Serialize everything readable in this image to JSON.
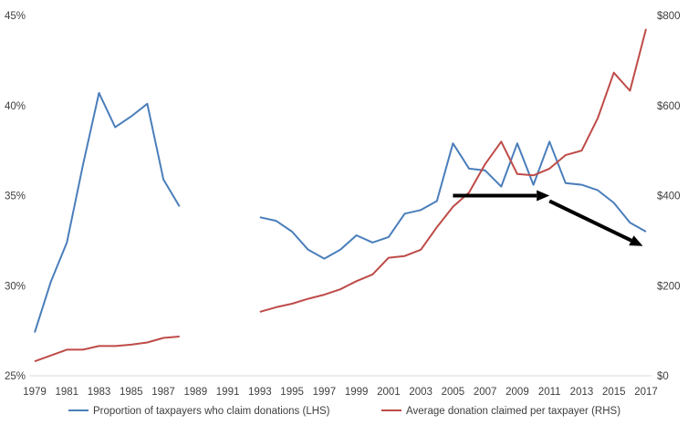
{
  "chart_data": {
    "type": "line",
    "title": "",
    "xlabel": "",
    "ylabel_left": "",
    "ylabel_right": "",
    "x": [
      1979,
      1980,
      1981,
      1982,
      1983,
      1984,
      1985,
      1986,
      1987,
      1988,
      1989,
      1990,
      1991,
      1992,
      1993,
      1994,
      1995,
      1996,
      1997,
      1998,
      1999,
      2000,
      2001,
      2002,
      2003,
      2004,
      2005,
      2006,
      2007,
      2008,
      2009,
      2010,
      2011,
      2012,
      2013,
      2014,
      2015,
      2016,
      2017
    ],
    "x_ticks": [
      "1979",
      "1981",
      "1983",
      "1985",
      "1987",
      "1989",
      "1991",
      "1993",
      "1995",
      "1997",
      "1999",
      "2001",
      "2003",
      "2005",
      "2007",
      "2009",
      "2011",
      "2013",
      "2015",
      "2017"
    ],
    "left_axis": {
      "range": [
        25,
        45
      ],
      "step": 5,
      "tick_labels": [
        "25%",
        "30%",
        "35%",
        "40%",
        "45%"
      ]
    },
    "right_axis": {
      "range": [
        0,
        800
      ],
      "step": 200,
      "tick_labels": [
        "$0",
        "$200",
        "$400",
        "$600",
        "$800"
      ]
    },
    "series": [
      {
        "name": "Proportion of taxpayers who claim donations  (LHS)",
        "axis": "left",
        "color": "#4a7ebb",
        "values": [
          27.4,
          30.2,
          32.4,
          36.7,
          40.7,
          38.8,
          39.4,
          40.1,
          35.9,
          34.4,
          null,
          null,
          null,
          null,
          33.8,
          33.6,
          33.0,
          32.0,
          31.5,
          32.0,
          32.8,
          32.4,
          32.7,
          34.0,
          34.2,
          34.7,
          37.9,
          36.5,
          36.4,
          35.5,
          37.9,
          35.6,
          38.0,
          35.7,
          35.6,
          35.3,
          34.6,
          33.5,
          33.0
        ]
      },
      {
        "name": "Average donation claimed per taxpayer  (RHS)",
        "axis": "right",
        "color": "#be4b48",
        "values": [
          32,
          45,
          58,
          58,
          66,
          66,
          69,
          74,
          84,
          87,
          null,
          null,
          null,
          null,
          142,
          152,
          160,
          171,
          180,
          192,
          210,
          225,
          262,
          266,
          280,
          330,
          375,
          407,
          470,
          520,
          448,
          445,
          460,
          490,
          500,
          572,
          673,
          633,
          770
        ]
      }
    ],
    "annotations": [
      {
        "type": "arrow",
        "from": [
          2005,
          35.0
        ],
        "to": [
          2011,
          35.0
        ],
        "color": "#000000"
      },
      {
        "type": "arrow",
        "from": [
          2011,
          34.7
        ],
        "to": [
          2016.8,
          32.2
        ],
        "color": "#000000"
      }
    ],
    "grid": false,
    "legend": "bottom"
  }
}
